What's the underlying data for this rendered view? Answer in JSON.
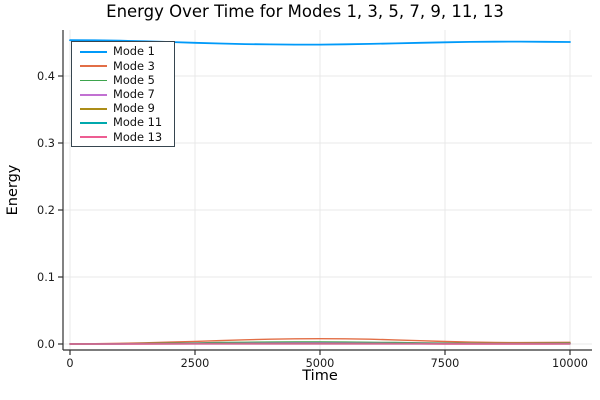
{
  "title": "Energy Over Time for Modes 1, 3, 5, 7, 9, 11, 13",
  "colors": {
    "background": "#ffffff",
    "spine": "#2f2f2f",
    "gridline": "#e9e9e9",
    "legend_border": "#36454f",
    "text": "#000000"
  },
  "legend": {
    "position": "top-left",
    "entries": [
      "Mode 1",
      "Mode 3",
      "Mode 5",
      "Mode 7",
      "Mode 9",
      "Mode 11",
      "Mode 13"
    ]
  },
  "chart_data": {
    "type": "line",
    "title": "Energy Over Time for Modes 1, 3, 5, 7, 9, 11, 13",
    "xlabel": "Time",
    "ylabel": "Energy",
    "xlim": [
      0,
      10000
    ],
    "ylim": [
      -0.009,
      0.469
    ],
    "xticks": [
      0,
      2500,
      5000,
      7500,
      10000
    ],
    "xtick_labels": [
      "0",
      "2500",
      "5000",
      "7500",
      "10000"
    ],
    "yticks": [
      0.0,
      0.1,
      0.2,
      0.3,
      0.4
    ],
    "ytick_labels": [
      "0.0",
      "0.1",
      "0.2",
      "0.3",
      "0.4"
    ],
    "grid": true,
    "legend_position": "top-left",
    "x": [
      0,
      500,
      1000,
      1500,
      2000,
      2500,
      3000,
      3500,
      4000,
      4500,
      5000,
      5500,
      6000,
      6500,
      7000,
      7500,
      8000,
      8500,
      9000,
      9500,
      10000
    ],
    "series": [
      {
        "name": "Mode 1",
        "color": "#009AF9",
        "values": [
          0.4535,
          0.4533,
          0.4527,
          0.4518,
          0.4507,
          0.4496,
          0.4485,
          0.4476,
          0.4471,
          0.4468,
          0.4469,
          0.4473,
          0.4479,
          0.4487,
          0.4495,
          0.4503,
          0.4509,
          0.4512,
          0.4513,
          0.4511,
          0.4508
        ]
      },
      {
        "name": "Mode 3",
        "color": "#E26E46",
        "values": [
          0.0,
          0.0004,
          0.001,
          0.0018,
          0.0028,
          0.0039,
          0.0051,
          0.0062,
          0.0071,
          0.0077,
          0.0079,
          0.0077,
          0.0071,
          0.0061,
          0.0049,
          0.0038,
          0.0029,
          0.0023,
          0.0021,
          0.0023,
          0.0026
        ]
      },
      {
        "name": "Mode 5",
        "color": "#3DA44D",
        "values": [
          0.0,
          0.0001,
          0.0004,
          0.0008,
          0.0012,
          0.0017,
          0.0022,
          0.0026,
          0.0029,
          0.0031,
          0.0031,
          0.0029,
          0.0026,
          0.0022,
          0.0018,
          0.0014,
          0.0011,
          0.0009,
          0.0009,
          0.001,
          0.0012
        ]
      },
      {
        "name": "Mode 7",
        "color": "#C271D2",
        "values": [
          0.0,
          0.0001,
          0.0002,
          0.0003,
          0.0005,
          0.0007,
          0.0009,
          0.0011,
          0.0012,
          0.0013,
          0.0013,
          0.0012,
          0.0011,
          0.0009,
          0.0007,
          0.0006,
          0.0005,
          0.0004,
          0.0004,
          0.0004,
          0.0005
        ]
      },
      {
        "name": "Mode 9",
        "color": "#AC8D18",
        "values": [
          0.0,
          0.0,
          0.0001,
          0.0001,
          0.0002,
          0.0003,
          0.0004,
          0.0004,
          0.0005,
          0.0005,
          0.0005,
          0.0005,
          0.0004,
          0.0004,
          0.0003,
          0.0002,
          0.0002,
          0.0002,
          0.0002,
          0.0002,
          0.0002
        ]
      },
      {
        "name": "Mode 11",
        "color": "#00A9AD",
        "values": [
          0.0,
          0.0,
          0.0,
          0.0001,
          0.0001,
          0.0001,
          0.0002,
          0.0002,
          0.0002,
          0.0002,
          0.0002,
          0.0002,
          0.0002,
          0.0001,
          0.0001,
          0.0001,
          0.0001,
          0.0001,
          0.0001,
          0.0001,
          0.0001
        ]
      },
      {
        "name": "Mode 13",
        "color": "#ED5D92",
        "values": [
          0.0,
          0.0,
          0.0,
          0.0,
          0.0001,
          0.0001,
          0.0001,
          0.0001,
          0.0001,
          0.0001,
          0.0001,
          0.0001,
          0.0001,
          0.0001,
          0.0001,
          0.0,
          0.0,
          0.0,
          0.0,
          0.0,
          0.0001
        ]
      }
    ]
  }
}
